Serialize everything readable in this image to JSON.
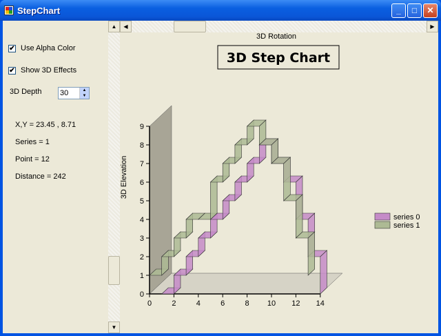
{
  "window": {
    "title": "StepChart"
  },
  "controls": {
    "use_alpha_label": "Use Alpha Color",
    "use_alpha_checked": true,
    "show_3d_label": "Show 3D Effects",
    "show_3d_checked": true,
    "depth_label": "3D Depth",
    "depth_value": "30",
    "check_glyph": "✔"
  },
  "info": {
    "xy": "X,Y = 23.45 , 8.71",
    "series": "Series = 1",
    "point": "Point = 12",
    "distance": "Distance = 242"
  },
  "scrollbars": {
    "horizontal_label": "3D Rotation",
    "vertical_label": "3D Elevation",
    "vertical_position": 0.86,
    "horizontal_position": 0.16
  },
  "chart_data": {
    "type": "line",
    "step": true,
    "three_d": true,
    "title": "3D Step Chart",
    "xlim": [
      0,
      14
    ],
    "ylim": [
      0,
      9
    ],
    "x_ticks": [
      "0",
      "2",
      "4",
      "6",
      "8",
      "10",
      "12",
      "14"
    ],
    "y_ticks": [
      "0",
      "1",
      "2",
      "3",
      "4",
      "5",
      "6",
      "7",
      "8",
      "9"
    ],
    "legend_position": "right",
    "series": [
      {
        "name": "series 0",
        "color": "#C58BC8",
        "x": [
          1,
          2,
          3,
          4,
          5,
          6,
          7,
          8,
          9,
          10,
          11,
          12,
          13,
          14
        ],
        "y": [
          0,
          1,
          2,
          3,
          4,
          5,
          6,
          7,
          8,
          7,
          6,
          4,
          2,
          0
        ]
      },
      {
        "name": "series 1",
        "color": "#ADBA94",
        "x": [
          0,
          1,
          2,
          3,
          4,
          5,
          6,
          7,
          8,
          9,
          10,
          11,
          12,
          13
        ],
        "y": [
          1,
          2,
          3,
          4,
          4,
          6,
          7,
          8,
          9,
          8,
          7,
          5,
          3,
          1
        ]
      }
    ]
  }
}
